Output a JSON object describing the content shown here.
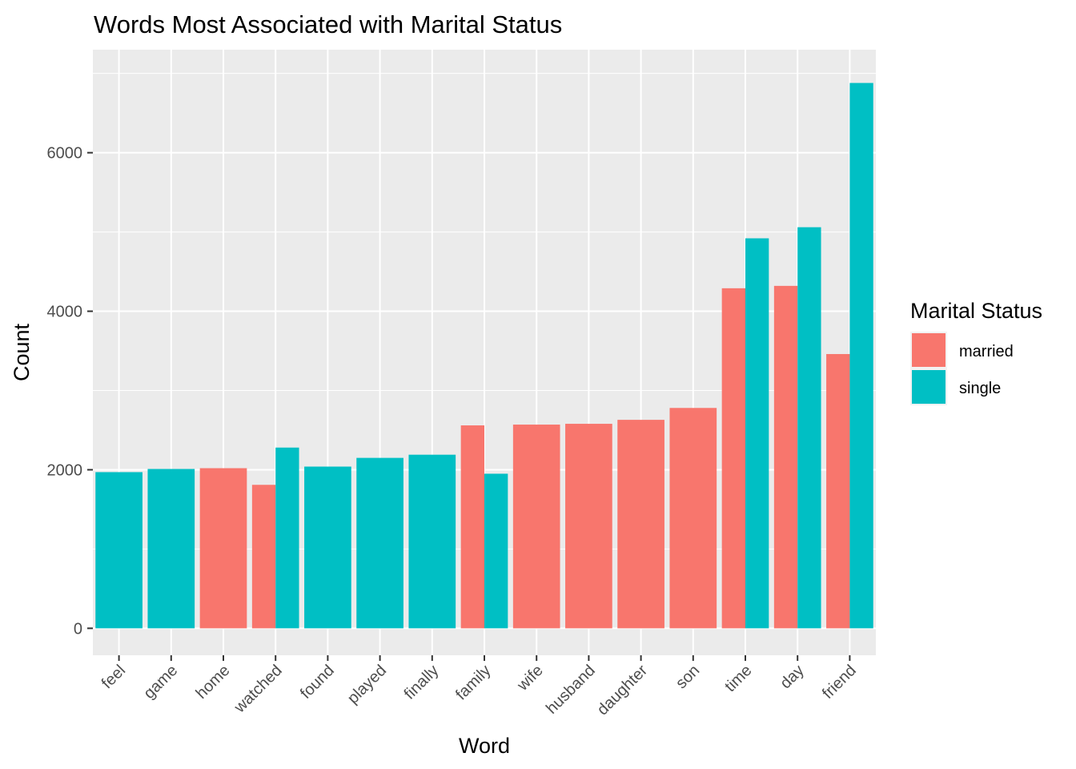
{
  "chart_data": {
    "type": "bar",
    "title": "Words Most Associated with Marital Status",
    "xlabel": "Word",
    "ylabel": "Count",
    "ylim": [
      -340,
      7300
    ],
    "yticks": [
      0,
      2000,
      4000,
      6000
    ],
    "grid": true,
    "legend": {
      "title": "Marital Status",
      "position": "right"
    },
    "categories": [
      "feel",
      "game",
      "home",
      "watched",
      "found",
      "played",
      "finally",
      "family",
      "wife",
      "husband",
      "daughter",
      "son",
      "time",
      "day",
      "friend"
    ],
    "series": [
      {
        "name": "married",
        "color": "#F8766D",
        "values": [
          null,
          null,
          2020,
          1810,
          null,
          null,
          null,
          2560,
          2570,
          2580,
          2630,
          2780,
          4290,
          4320,
          3460
        ]
      },
      {
        "name": "single",
        "color": "#00BFC4",
        "values": [
          1970,
          2010,
          null,
          2280,
          2040,
          2150,
          2190,
          1950,
          null,
          null,
          null,
          null,
          4920,
          5060,
          6880
        ]
      }
    ]
  }
}
